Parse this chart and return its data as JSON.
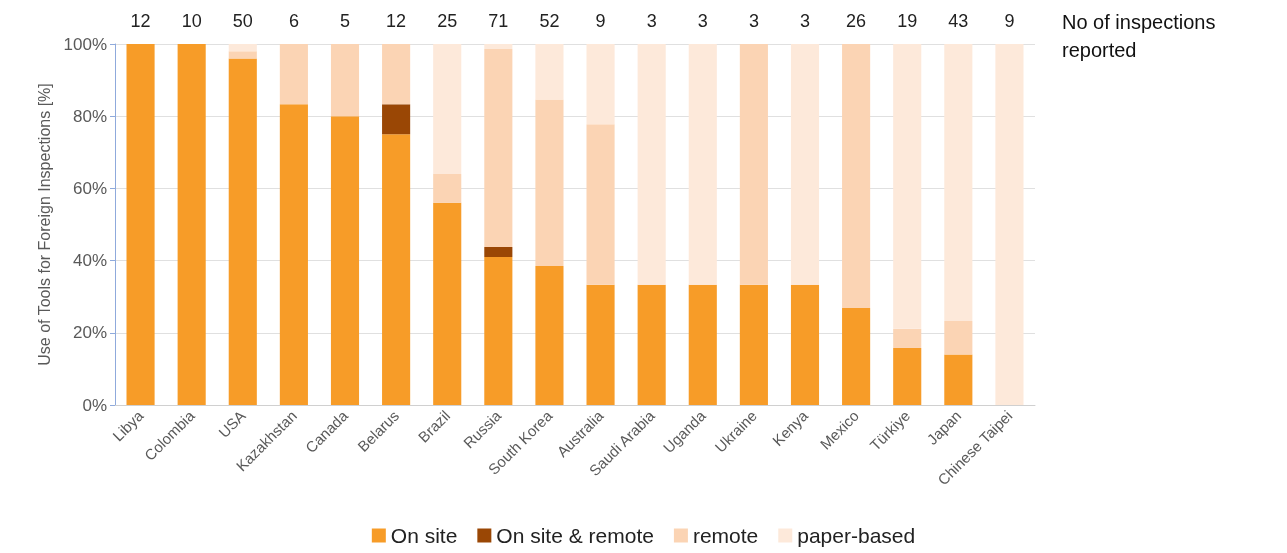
{
  "chart_data": {
    "type": "bar",
    "stacked": true,
    "ylabel": "Use of Tools for Foreign Inspections [%]",
    "categories": [
      "Libya",
      "Colombia",
      "USA",
      "Kazakhstan",
      "Canada",
      "Belarus",
      "Brazil",
      "Russia",
      "South Korea",
      "Australia",
      "Saudi Arabia",
      "Uganda",
      "Ukraine",
      "Kenya",
      "Mexico",
      "Türkiye",
      "Japan",
      "Chinese Taipei"
    ],
    "series": [
      {
        "name": "On site",
        "color": "#f79c28",
        "values": [
          100,
          100,
          96,
          83.3,
          80,
          75,
          56,
          41,
          38.5,
          33.3,
          33.3,
          33.3,
          33.3,
          33.3,
          26.9,
          15.8,
          14,
          0
        ]
      },
      {
        "name": "On site & remote",
        "color": "#9a4705",
        "values": [
          0,
          0,
          0,
          0,
          0,
          8.3,
          0,
          2.8,
          0,
          0,
          0,
          0,
          0,
          0,
          0,
          0,
          0,
          0
        ]
      },
      {
        "name": "remote",
        "color": "#fbd4b4",
        "values": [
          0,
          0,
          2,
          16.7,
          20,
          16.7,
          8,
          54.8,
          46.1,
          44.5,
          0,
          0,
          66.7,
          0,
          73.1,
          5.3,
          9.3,
          0
        ]
      },
      {
        "name": "paper-based",
        "color": "#fde9da",
        "values": [
          0,
          0,
          2,
          0,
          0,
          0,
          36,
          1.4,
          15.4,
          22.2,
          66.7,
          66.7,
          0,
          66.7,
          0,
          78.9,
          76.7,
          100
        ]
      }
    ],
    "ylim": [
      0,
      100
    ],
    "yticks": [
      {
        "value": 0,
        "label": "0%"
      },
      {
        "value": 20,
        "label": "20%"
      },
      {
        "value": 40,
        "label": "40%"
      },
      {
        "value": 60,
        "label": "60%"
      },
      {
        "value": 80,
        "label": "80%"
      },
      {
        "value": 100,
        "label": "100%"
      }
    ],
    "grid": "y",
    "legend": "bottom",
    "annotations": [
      "No of inspections reported",
      {
        "text": "12",
        "x": "Libya",
        "y": 100
      },
      {
        "text": "10",
        "x": "Colombia",
        "y": 100
      },
      {
        "text": "50",
        "x": "USA",
        "y": 100
      },
      {
        "text": "6",
        "x": "Kazakhstan",
        "y": 100
      },
      {
        "text": "5",
        "x": "Canada",
        "y": 100
      },
      {
        "text": "12",
        "x": "Belarus",
        "y": 100
      },
      {
        "text": "25",
        "x": "Brazil",
        "y": 100
      },
      {
        "text": "71",
        "x": "Russia",
        "y": 100
      },
      {
        "text": "52",
        "x": "South Korea",
        "y": 100
      },
      {
        "text": "9",
        "x": "Australia",
        "y": 100
      },
      {
        "text": "3",
        "x": "Saudi Arabia",
        "y": 100
      },
      {
        "text": "3",
        "x": "Uganda",
        "y": 100
      },
      {
        "text": "3",
        "x": "Ukraine",
        "y": 100
      },
      {
        "text": "3",
        "x": "Kenya",
        "y": 100
      },
      {
        "text": "26",
        "x": "Mexico",
        "y": 100
      },
      {
        "text": "19",
        "x": "Türkiye",
        "y": 100
      },
      {
        "text": "43",
        "x": "Japan",
        "y": 100
      },
      {
        "text": "9",
        "x": "Chinese Taipei",
        "y": 100
      }
    ]
  }
}
